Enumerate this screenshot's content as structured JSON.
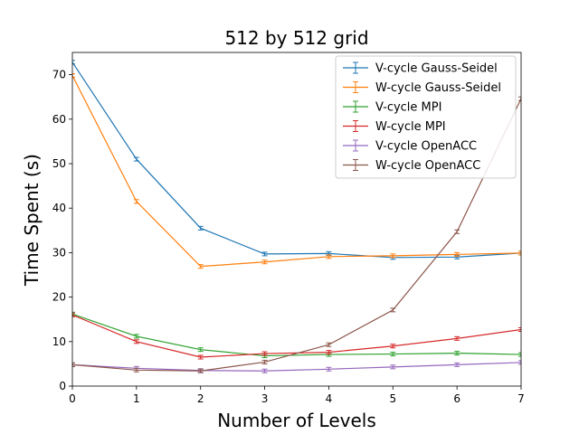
{
  "chart_data": {
    "type": "line",
    "title": "512 by 512 grid",
    "xlabel": "Number of Levels",
    "ylabel": "Time Spent (s)",
    "xlim": [
      0,
      7
    ],
    "ylim": [
      0,
      75
    ],
    "xticks": [
      0,
      1,
      2,
      3,
      4,
      5,
      6,
      7
    ],
    "yticks": [
      0,
      10,
      20,
      30,
      40,
      50,
      60,
      70
    ],
    "x": [
      0,
      1,
      2,
      3,
      4,
      5,
      6,
      7
    ],
    "grid": false,
    "legend_position": "top-right",
    "error_bars": true,
    "series": [
      {
        "name": "V-cycle Gauss-Seidel",
        "color": "#1f77b4",
        "values": [
          72.8,
          51.0,
          35.5,
          29.7,
          29.8,
          28.9,
          29.0,
          29.9
        ]
      },
      {
        "name": "W-cycle Gauss-Seidel",
        "color": "#ff7f0e",
        "values": [
          69.8,
          41.5,
          26.9,
          27.9,
          29.1,
          29.3,
          29.6,
          29.9
        ]
      },
      {
        "name": "V-cycle MPI",
        "color": "#2ca02c",
        "values": [
          16.2,
          11.2,
          8.2,
          6.8,
          7.1,
          7.2,
          7.4,
          7.1
        ]
      },
      {
        "name": "W-cycle MPI",
        "color": "#d62728",
        "values": [
          16.0,
          10.0,
          6.5,
          7.3,
          7.6,
          9.0,
          10.7,
          12.7
        ]
      },
      {
        "name": "V-cycle OpenACC",
        "color": "#9467bd",
        "values": [
          4.8,
          4.0,
          3.5,
          3.4,
          3.8,
          4.3,
          4.8,
          5.3
        ]
      },
      {
        "name": "W-cycle OpenACC",
        "color": "#8c564b",
        "values": [
          4.8,
          3.6,
          3.4,
          5.4,
          9.3,
          17.1,
          34.7,
          64.6
        ]
      }
    ]
  }
}
